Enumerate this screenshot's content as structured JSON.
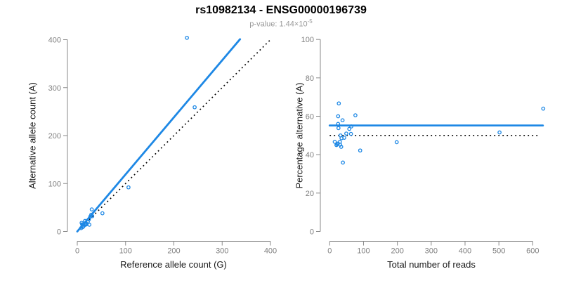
{
  "header": {
    "title": "rs10982134 - ENSG00000196739",
    "subtitle_prefix": "p-value: 1.44×10",
    "subtitle_exponent": "-5"
  },
  "colors": {
    "accent_blue": "#1E88E5",
    "axis_gray": "#8a8a8a",
    "tick_label_gray": "#808080",
    "reference_black": "#000000",
    "subtitle_gray": "#999999"
  },
  "chart_data": [
    {
      "type": "scatter",
      "xlabel": "Reference allele count (G)",
      "ylabel": "Alternative allele count (A)",
      "xlim": [
        0,
        400
      ],
      "ylim": [
        0,
        400
      ],
      "xticks": [
        0,
        100,
        200,
        300,
        400
      ],
      "yticks": [
        0,
        100,
        200,
        300,
        400
      ],
      "grid": false,
      "marker": "open-circle",
      "points": [
        [
          9,
          18
        ],
        [
          10,
          15
        ],
        [
          16,
          22
        ],
        [
          30,
          46
        ],
        [
          11,
          14
        ],
        [
          29,
          35
        ],
        [
          12,
          14
        ],
        [
          27,
          31
        ],
        [
          31,
          32
        ],
        [
          16,
          16
        ],
        [
          24,
          25
        ],
        [
          22,
          21
        ],
        [
          18,
          17
        ],
        [
          16,
          14
        ],
        [
          13,
          11
        ],
        [
          11,
          9
        ],
        [
          8,
          7
        ],
        [
          12,
          10
        ],
        [
          17,
          14
        ],
        [
          19,
          15
        ],
        [
          52,
          38
        ],
        [
          25,
          14
        ],
        [
          106,
          92
        ],
        [
          243,
          259
        ],
        [
          227,
          404
        ]
      ],
      "fit_line": {
        "slope": 1.19,
        "intercept": 0,
        "x_range": [
          0,
          337
        ],
        "style": "solid-blue"
      },
      "ref_line": {
        "slope": 1,
        "intercept": 0,
        "x_range": [
          0,
          400
        ],
        "style": "dotted-black"
      }
    },
    {
      "type": "scatter",
      "xlabel": "Total number of reads",
      "ylabel": "Percentage alternative (A)",
      "xlim": [
        0,
        630
      ],
      "ylim": [
        0,
        100
      ],
      "xticks": [
        0,
        100,
        200,
        300,
        400,
        500,
        600
      ],
      "yticks": [
        0,
        20,
        40,
        60,
        80,
        100
      ],
      "grid": false,
      "marker": "open-circle",
      "points": [
        [
          27,
          66.7
        ],
        [
          25,
          60.0
        ],
        [
          38,
          57.9
        ],
        [
          76,
          60.5
        ],
        [
          25,
          56.0
        ],
        [
          64,
          54.7
        ],
        [
          26,
          53.8
        ],
        [
          58,
          53.4
        ],
        [
          63,
          50.8
        ],
        [
          32,
          50.0
        ],
        [
          49,
          51.0
        ],
        [
          43,
          48.8
        ],
        [
          35,
          48.6
        ],
        [
          30,
          46.7
        ],
        [
          24,
          45.8
        ],
        [
          20,
          45.0
        ],
        [
          15,
          46.7
        ],
        [
          22,
          45.5
        ],
        [
          31,
          45.2
        ],
        [
          34,
          44.1
        ],
        [
          90,
          42.2
        ],
        [
          39,
          35.9
        ],
        [
          198,
          46.5
        ],
        [
          502,
          51.6
        ],
        [
          631,
          64.0
        ]
      ],
      "fit_line": {
        "slope": 0,
        "intercept": 55.2,
        "x_range": [
          0,
          630
        ],
        "style": "solid-blue"
      },
      "ref_line": {
        "slope": 0,
        "intercept": 50,
        "x_range": [
          0,
          620
        ],
        "style": "dotted-black"
      }
    }
  ]
}
